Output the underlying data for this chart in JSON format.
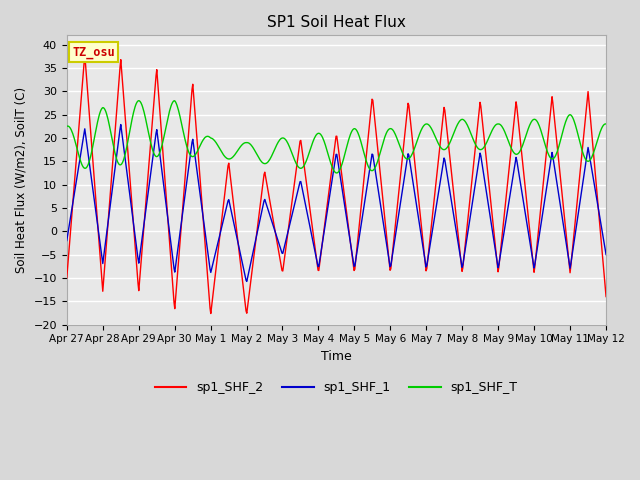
{
  "title": "SP1 Soil Heat Flux",
  "xlabel": "Time",
  "ylabel": "Soil Heat Flux (W/m2), SoilT (C)",
  "ylim": [
    -20,
    42
  ],
  "background_color": "#d8d8d8",
  "plot_bg_color": "#e8e8e8",
  "grid_color": "white",
  "line_colors": {
    "sp1_SHF_2": "#ff0000",
    "sp1_SHF_1": "#0000cc",
    "sp1_SHF_T": "#00cc00"
  },
  "legend_labels": [
    "sp1_SHF_2",
    "sp1_SHF_1",
    "sp1_SHF_T"
  ],
  "tz_label": "TZ_osu",
  "xtick_labels": [
    "Apr 27",
    "Apr 28",
    "Apr 29",
    "Apr 30",
    "May 1",
    "May 2",
    "May 3",
    "May 4",
    "May 5",
    "May 6",
    "May 7",
    "May 8",
    "May 9",
    "May 10",
    "May 11",
    "May 12"
  ],
  "xtick_positions": [
    0,
    1,
    2,
    3,
    4,
    5,
    6,
    7,
    8,
    9,
    10,
    11,
    12,
    13,
    14,
    15
  ],
  "ytick_labels": [
    -20,
    -15,
    -10,
    -5,
    0,
    5,
    10,
    15,
    20,
    25,
    30,
    35,
    40
  ],
  "figsize": [
    6.4,
    4.8
  ],
  "dpi": 100
}
